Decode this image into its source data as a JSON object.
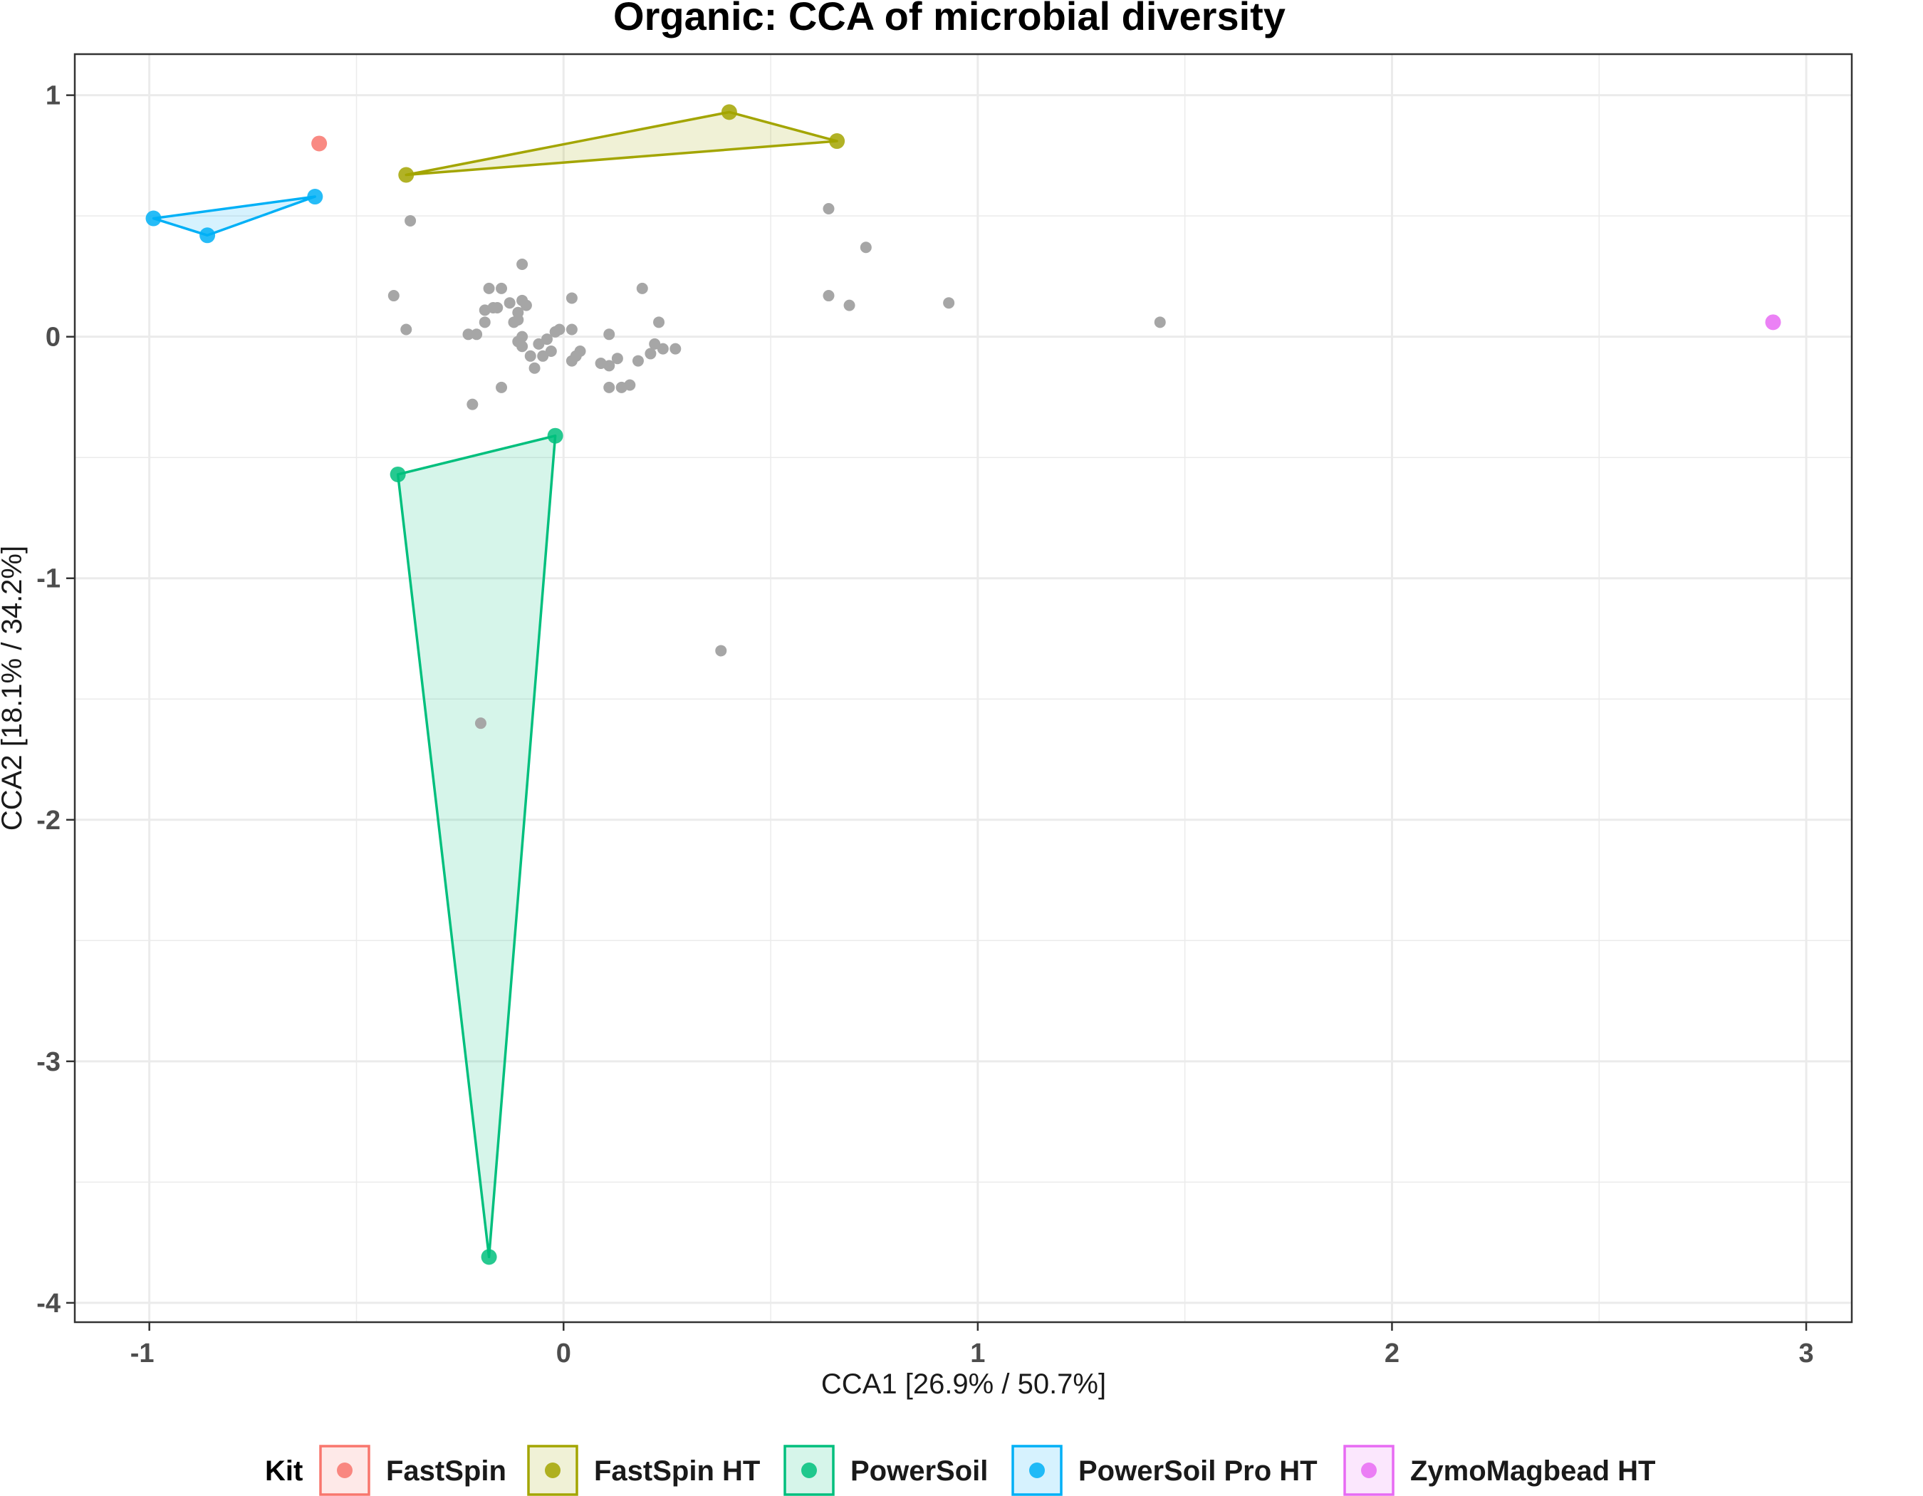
{
  "chart_data": {
    "type": "scatter",
    "title": "Organic: CCA of microbial diversity",
    "xlabel": "CCA1 [26.9% / 50.7%]",
    "ylabel": "CCA2 [18.1% / 34.2%]",
    "xlim": [
      -1.18,
      3.11
    ],
    "ylim": [
      -4.08,
      1.17
    ],
    "x_ticks": [
      "-1",
      "0",
      "1",
      "2",
      "3"
    ],
    "y_ticks": [
      "1",
      "0",
      "-1",
      "-2",
      "-3",
      "-4"
    ],
    "grid": true,
    "legend": {
      "title": "Kit",
      "placement": "bottom",
      "entries": [
        "FastSpin",
        "FastSpin HT",
        "PowerSoil",
        "PowerSoil Pro HT",
        "ZymoMagbead HT"
      ]
    },
    "colors": {
      "FastSpin": "#F8766D",
      "FastSpin HT": "#A3A500",
      "PowerSoil": "#00BF7D",
      "PowerSoil Pro HT": "#00B0F6",
      "ZymoMagbead HT": "#E76BF3",
      "taxa": "#A6A6A6"
    },
    "series": [
      {
        "name": "FastSpin",
        "points": [
          [
            -0.59,
            0.8
          ]
        ]
      },
      {
        "name": "FastSpin HT",
        "points": [
          [
            -0.38,
            0.67
          ],
          [
            0.4,
            0.93
          ],
          [
            0.66,
            0.81
          ]
        ]
      },
      {
        "name": "PowerSoil",
        "points": [
          [
            -0.4,
            -0.57
          ],
          [
            -0.02,
            -0.41
          ],
          [
            -0.18,
            -3.81
          ]
        ]
      },
      {
        "name": "PowerSoil Pro HT",
        "points": [
          [
            -0.99,
            0.49
          ],
          [
            -0.86,
            0.42
          ],
          [
            -0.6,
            0.58
          ]
        ]
      },
      {
        "name": "ZymoMagbead HT",
        "points": [
          [
            2.92,
            0.06
          ]
        ]
      }
    ],
    "taxa_points": [
      [
        -0.37,
        0.48
      ],
      [
        -0.1,
        0.3
      ],
      [
        -0.41,
        0.17
      ],
      [
        -0.38,
        0.03
      ],
      [
        -0.23,
        0.01
      ],
      [
        -0.21,
        0.01
      ],
      [
        -0.19,
        0.06
      ],
      [
        -0.19,
        0.11
      ],
      [
        -0.18,
        0.2
      ],
      [
        -0.17,
        0.12
      ],
      [
        -0.15,
        0.2
      ],
      [
        -0.16,
        0.12
      ],
      [
        -0.13,
        0.14
      ],
      [
        -0.12,
        0.06
      ],
      [
        -0.11,
        0.1
      ],
      [
        -0.11,
        0.07
      ],
      [
        -0.1,
        0.15
      ],
      [
        -0.1,
        0.0
      ],
      [
        -0.09,
        0.13
      ],
      [
        -0.1,
        -0.04
      ],
      [
        -0.08,
        -0.08
      ],
      [
        -0.07,
        -0.13
      ],
      [
        -0.06,
        -0.03
      ],
      [
        -0.05,
        -0.08
      ],
      [
        -0.04,
        -0.01
      ],
      [
        -0.03,
        -0.06
      ],
      [
        -0.02,
        0.02
      ],
      [
        -0.01,
        0.03
      ],
      [
        0.02,
        0.16
      ],
      [
        0.02,
        0.03
      ],
      [
        0.02,
        -0.1
      ],
      [
        0.03,
        -0.08
      ],
      [
        0.04,
        -0.06
      ],
      [
        0.09,
        -0.11
      ],
      [
        0.11,
        -0.12
      ],
      [
        0.11,
        0.01
      ],
      [
        0.13,
        -0.09
      ],
      [
        0.11,
        -0.21
      ],
      [
        0.14,
        -0.21
      ],
      [
        0.16,
        -0.2
      ],
      [
        0.18,
        -0.1
      ],
      [
        0.19,
        0.2
      ],
      [
        0.21,
        -0.07
      ],
      [
        0.22,
        -0.03
      ],
      [
        0.23,
        0.06
      ],
      [
        0.24,
        -0.05
      ],
      [
        0.27,
        -0.05
      ],
      [
        -0.22,
        -0.28
      ],
      [
        -0.15,
        -0.21
      ],
      [
        -0.11,
        -0.02
      ],
      [
        0.64,
        0.53
      ],
      [
        0.64,
        0.17
      ],
      [
        0.69,
        0.13
      ],
      [
        0.73,
        0.37
      ],
      [
        0.93,
        0.14
      ],
      [
        1.44,
        0.06
      ],
      [
        0.38,
        -1.3
      ],
      [
        -0.2,
        -1.6
      ]
    ]
  }
}
